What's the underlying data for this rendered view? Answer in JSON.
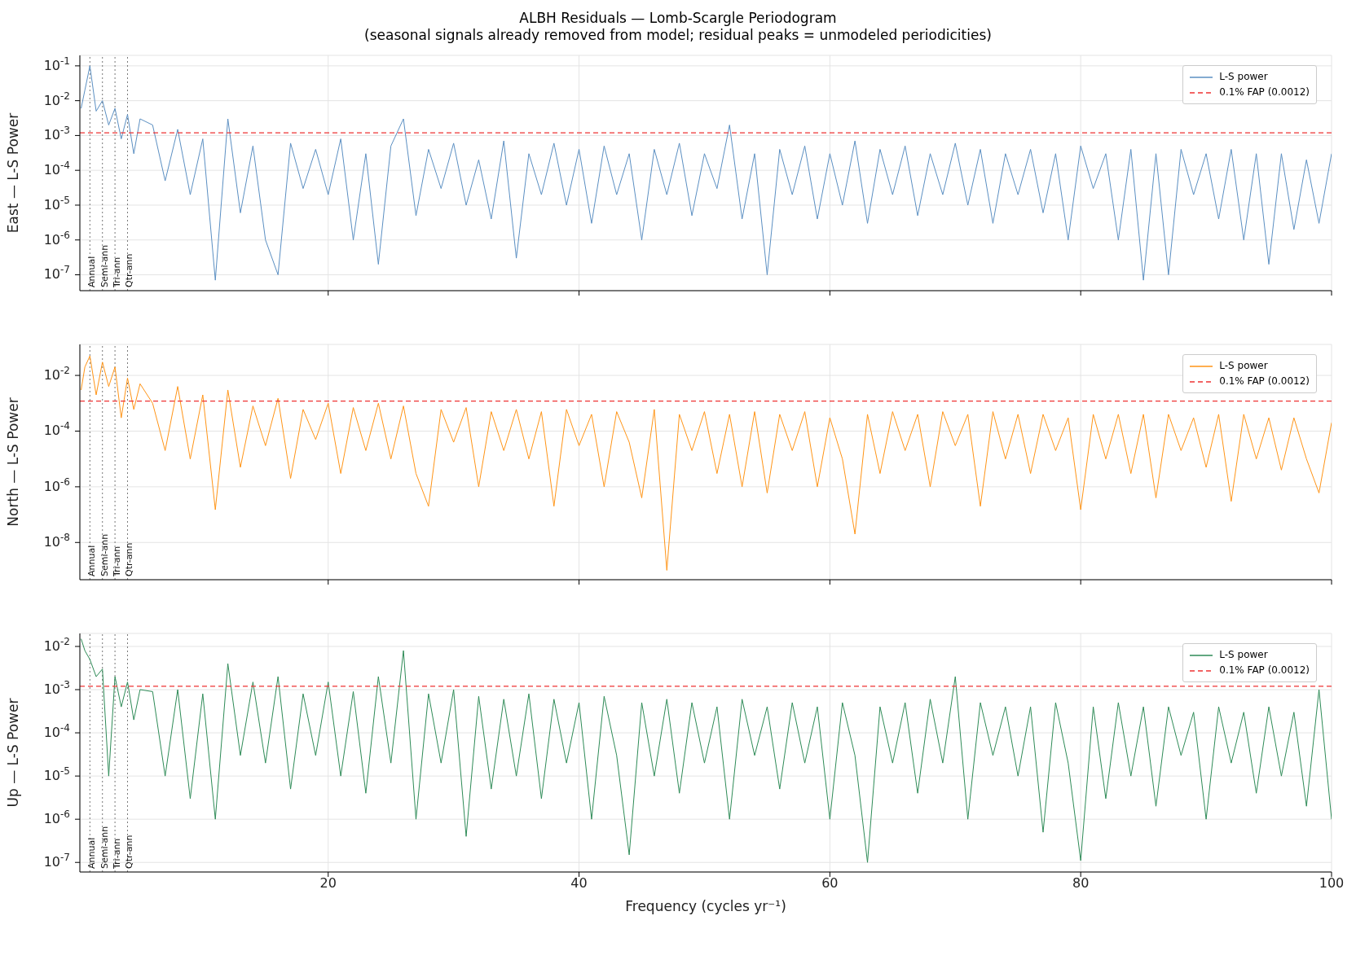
{
  "chart_data": [
    {
      "type": "line",
      "title": "ALBH Residuals — Lomb-Scargle Periodogram",
      "subtitle": "(seasonal signals already removed from model; residual peaks = unmodeled periodicities)",
      "ylabel": "East — L-S Power",
      "log": "y",
      "grid": true,
      "legend": "top right",
      "tick_labels": "y",
      "line_style": "solid",
      "xlim": [
        0.2,
        100
      ],
      "xticks": [
        20,
        40,
        60,
        80,
        100
      ],
      "ylim": [
        3.5e-08,
        0.2
      ],
      "yticks": [
        {
          "value": 1e-07,
          "label": "10$^{-7}$"
        },
        {
          "value": 1e-06,
          "label": "10$^{-6}$"
        },
        {
          "value": 1e-05,
          "label": "10$^{-5}$"
        },
        {
          "value": 0.0001,
          "label": "10$^{-4}$"
        },
        {
          "value": 0.001,
          "label": "10$^{-3}$"
        },
        {
          "value": 0.01,
          "label": "10$^{-2}$"
        },
        {
          "value": 0.1,
          "label": "10$^{-1}$"
        }
      ],
      "ref_lines": [
        {
          "axis": "y",
          "value": 0.0012,
          "label": "0.1% FAP (0.0012)",
          "color": "#ee3333",
          "line_style": "dashed"
        },
        {
          "axis": "x",
          "value": 1,
          "label": "Annual",
          "color": "#555555",
          "line_style": "dotted"
        },
        {
          "axis": "x",
          "value": 2,
          "label": "Semi-ann",
          "color": "#555555",
          "line_style": "dotted"
        },
        {
          "axis": "x",
          "value": 3,
          "label": "Tri-ann",
          "color": "#555555",
          "line_style": "dotted"
        },
        {
          "axis": "x",
          "value": 4,
          "label": "Qtr-ann",
          "color": "#555555",
          "line_style": "dotted"
        }
      ],
      "x": [
        0.3,
        0.6,
        1,
        1.5,
        2,
        2.5,
        3,
        3.5,
        4,
        4.5,
        5,
        6,
        7,
        8,
        9,
        10,
        11,
        12,
        13,
        14,
        15,
        16,
        17,
        18,
        19,
        20,
        21,
        22,
        23,
        24,
        25,
        26,
        27,
        28,
        29,
        30,
        31,
        32,
        33,
        34,
        35,
        36,
        37,
        38,
        39,
        40,
        41,
        42,
        43,
        44,
        45,
        46,
        47,
        48,
        49,
        50,
        51,
        52,
        53,
        54,
        55,
        56,
        57,
        58,
        59,
        60,
        61,
        62,
        63,
        64,
        65,
        66,
        67,
        68,
        69,
        70,
        71,
        72,
        73,
        74,
        75,
        76,
        77,
        78,
        79,
        80,
        81,
        82,
        83,
        84,
        85,
        86,
        87,
        88,
        89,
        90,
        91,
        92,
        93,
        94,
        95,
        96,
        97,
        98,
        99,
        100
      ],
      "series": [
        {
          "name": "L-S power",
          "color": "#5b8fc2",
          "values": [
            0.006,
            0.02,
            0.1,
            0.005,
            0.01,
            0.002,
            0.006,
            0.0008,
            0.004,
            0.0003,
            0.003,
            0.002,
            5e-05,
            0.0015,
            2e-05,
            0.0008,
            7e-08,
            0.003,
            6e-06,
            0.0005,
            1e-06,
            1e-07,
            0.0006,
            3e-05,
            0.0004,
            2e-05,
            0.0008,
            1e-06,
            0.0003,
            2e-07,
            0.0005,
            0.003,
            5e-06,
            0.0004,
            3e-05,
            0.0006,
            1e-05,
            0.0002,
            4e-06,
            0.0007,
            3e-07,
            0.0003,
            2e-05,
            0.0006,
            1e-05,
            0.0004,
            3e-06,
            0.0005,
            2e-05,
            0.0003,
            1e-06,
            0.0004,
            2e-05,
            0.0006,
            5e-06,
            0.0003,
            3e-05,
            0.002,
            4e-06,
            0.0003,
            1e-07,
            0.0004,
            2e-05,
            0.0005,
            4e-06,
            0.0003,
            1e-05,
            0.0007,
            3e-06,
            0.0004,
            2e-05,
            0.0005,
            5e-06,
            0.0003,
            2e-05,
            0.0006,
            1e-05,
            0.0004,
            3e-06,
            0.0003,
            2e-05,
            0.0004,
            6e-06,
            0.0003,
            1e-06,
            0.0005,
            3e-05,
            0.0003,
            1e-06,
            0.0004,
            7e-08,
            0.0003,
            1e-07,
            0.0004,
            2e-05,
            0.0003,
            4e-06,
            0.0004,
            1e-06,
            0.0003,
            2e-07,
            0.0003,
            2e-06,
            0.0002,
            3e-06,
            0.0003
          ]
        }
      ]
    },
    {
      "type": "line",
      "ylabel": "North — L-S Power",
      "log": "y",
      "grid": true,
      "legend": "top right",
      "tick_labels": "y",
      "line_style": "solid",
      "xlim": [
        0.2,
        100
      ],
      "xticks": [
        20,
        40,
        60,
        80,
        100
      ],
      "ylim": [
        4.6e-10,
        0.13
      ],
      "yticks": [
        {
          "value": 1e-08,
          "label": "10$^{-8}$"
        },
        {
          "value": 1e-06,
          "label": "10$^{-6}$"
        },
        {
          "value": 0.0001,
          "label": "10$^{-4}$"
        },
        {
          "value": 0.01,
          "label": "10$^{-2}$"
        }
      ],
      "ref_lines": [
        {
          "axis": "y",
          "value": 0.0012,
          "label": "0.1% FAP (0.0012)",
          "color": "#ee3333",
          "line_style": "dashed"
        },
        {
          "axis": "x",
          "value": 1,
          "label": "Annual",
          "color": "#555555",
          "line_style": "dotted"
        },
        {
          "axis": "x",
          "value": 2,
          "label": "Semi-ann",
          "color": "#555555",
          "line_style": "dotted"
        },
        {
          "axis": "x",
          "value": 3,
          "label": "Tri-ann",
          "color": "#555555",
          "line_style": "dotted"
        },
        {
          "axis": "x",
          "value": 4,
          "label": "Qtr-ann",
          "color": "#555555",
          "line_style": "dotted"
        }
      ],
      "x": [
        0.3,
        0.6,
        1,
        1.5,
        2,
        2.5,
        3,
        3.5,
        4,
        4.5,
        5,
        6,
        7,
        8,
        9,
        10,
        11,
        12,
        13,
        14,
        15,
        16,
        17,
        18,
        19,
        20,
        21,
        22,
        23,
        24,
        25,
        26,
        27,
        28,
        29,
        30,
        31,
        32,
        33,
        34,
        35,
        36,
        37,
        38,
        39,
        40,
        41,
        42,
        43,
        44,
        45,
        46,
        47,
        48,
        49,
        50,
        51,
        52,
        53,
        54,
        55,
        56,
        57,
        58,
        59,
        60,
        61,
        62,
        63,
        64,
        65,
        66,
        67,
        68,
        69,
        70,
        71,
        72,
        73,
        74,
        75,
        76,
        77,
        78,
        79,
        80,
        81,
        82,
        83,
        84,
        85,
        86,
        87,
        88,
        89,
        90,
        91,
        92,
        93,
        94,
        95,
        96,
        97,
        98,
        99,
        100
      ],
      "series": [
        {
          "name": "L-S power",
          "color": "#ff9416",
          "values": [
            0.003,
            0.02,
            0.05,
            0.002,
            0.03,
            0.004,
            0.02,
            0.0003,
            0.008,
            0.0006,
            0.005,
            0.001,
            2e-05,
            0.004,
            1e-05,
            0.002,
            1.5e-07,
            0.003,
            5e-06,
            0.0008,
            3e-05,
            0.0015,
            2e-06,
            0.0006,
            5e-05,
            0.001,
            3e-06,
            0.0007,
            2e-05,
            0.001,
            1e-05,
            0.0008,
            3e-06,
            2e-07,
            0.0006,
            4e-05,
            0.0007,
            1e-06,
            0.0005,
            2e-05,
            0.0006,
            1e-05,
            0.0005,
            2e-07,
            0.0006,
            3e-05,
            0.0004,
            1e-06,
            0.0005,
            4e-05,
            4e-07,
            0.0006,
            1e-09,
            0.0004,
            2e-05,
            0.0005,
            3e-06,
            0.0004,
            1e-06,
            0.0005,
            6e-07,
            0.0004,
            2e-05,
            0.0005,
            1e-06,
            0.0003,
            1e-05,
            2e-08,
            0.0004,
            3e-06,
            0.0005,
            2e-05,
            0.0004,
            1e-06,
            0.0005,
            3e-05,
            0.0004,
            2e-07,
            0.0005,
            1e-05,
            0.0004,
            3e-06,
            0.0004,
            2e-05,
            0.0003,
            1.5e-07,
            0.0004,
            1e-05,
            0.0004,
            3e-06,
            0.0004,
            4e-07,
            0.0004,
            2e-05,
            0.0003,
            5e-06,
            0.0004,
            3e-07,
            0.0004,
            1e-05,
            0.0003,
            4e-06,
            0.0003,
            1e-05,
            6e-07,
            0.0002
          ]
        }
      ]
    },
    {
      "type": "line",
      "ylabel": "Up — L-S Power",
      "xlabel": "Frequency (cycles yr⁻¹)",
      "log": "y",
      "grid": true,
      "legend": "top right",
      "line_style": "solid",
      "xlim": [
        0.2,
        100
      ],
      "xticks": [
        20,
        40,
        60,
        80,
        100
      ],
      "ylim": [
        6e-08,
        0.02
      ],
      "yticks": [
        {
          "value": 1e-07,
          "label": "10$^{-7}$"
        },
        {
          "value": 1e-06,
          "label": "10$^{-6}$"
        },
        {
          "value": 1e-05,
          "label": "10$^{-5}$"
        },
        {
          "value": 0.0001,
          "label": "10$^{-4}$"
        },
        {
          "value": 0.001,
          "label": "10$^{-3}$"
        },
        {
          "value": 0.01,
          "label": "10$^{-2}$"
        }
      ],
      "ref_lines": [
        {
          "axis": "y",
          "value": 0.0012,
          "label": "0.1% FAP (0.0012)",
          "color": "#ee3333",
          "line_style": "dashed"
        },
        {
          "axis": "x",
          "value": 1,
          "label": "Annual",
          "color": "#555555",
          "line_style": "dotted"
        },
        {
          "axis": "x",
          "value": 2,
          "label": "Semi-ann",
          "color": "#555555",
          "line_style": "dotted"
        },
        {
          "axis": "x",
          "value": 3,
          "label": "Tri-ann",
          "color": "#555555",
          "line_style": "dotted"
        },
        {
          "axis": "x",
          "value": 4,
          "label": "Qtr-ann",
          "color": "#555555",
          "line_style": "dotted"
        }
      ],
      "x": [
        0.3,
        0.6,
        1,
        1.5,
        2,
        2.5,
        3,
        3.5,
        4,
        4.5,
        5,
        6,
        7,
        8,
        9,
        10,
        11,
        12,
        13,
        14,
        15,
        16,
        17,
        18,
        19,
        20,
        21,
        22,
        23,
        24,
        25,
        26,
        27,
        28,
        29,
        30,
        31,
        32,
        33,
        34,
        35,
        36,
        37,
        38,
        39,
        40,
        41,
        42,
        43,
        44,
        45,
        46,
        47,
        48,
        49,
        50,
        51,
        52,
        53,
        54,
        55,
        56,
        57,
        58,
        59,
        60,
        61,
        62,
        63,
        64,
        65,
        66,
        67,
        68,
        69,
        70,
        71,
        72,
        73,
        74,
        75,
        76,
        77,
        78,
        79,
        80,
        81,
        82,
        83,
        84,
        85,
        86,
        87,
        88,
        89,
        90,
        91,
        92,
        93,
        94,
        95,
        96,
        97,
        98,
        99,
        100
      ],
      "series": [
        {
          "name": "L-S power",
          "color": "#2e8b57",
          "values": [
            0.015,
            0.008,
            0.005,
            0.002,
            0.003,
            1e-05,
            0.002,
            0.0004,
            0.0015,
            0.0002,
            0.001,
            0.0009,
            1e-05,
            0.001,
            3e-06,
            0.0008,
            1e-06,
            0.004,
            3e-05,
            0.0015,
            2e-05,
            0.002,
            5e-06,
            0.0008,
            3e-05,
            0.0015,
            1e-05,
            0.0009,
            4e-06,
            0.002,
            2e-05,
            0.008,
            1e-06,
            0.0008,
            2e-05,
            0.001,
            4e-07,
            0.0007,
            5e-06,
            0.0006,
            1e-05,
            0.0008,
            3e-06,
            0.0006,
            2e-05,
            0.0005,
            1e-06,
            0.0007,
            3e-05,
            1.5e-07,
            0.0005,
            1e-05,
            0.0006,
            4e-06,
            0.0005,
            2e-05,
            0.0004,
            1e-06,
            0.0006,
            3e-05,
            0.0004,
            5e-06,
            0.0005,
            2e-05,
            0.0004,
            1e-06,
            0.0005,
            3e-05,
            1e-07,
            0.0004,
            2e-05,
            0.0005,
            4e-06,
            0.0006,
            2e-05,
            0.002,
            1e-06,
            0.0005,
            3e-05,
            0.0004,
            1e-05,
            0.0004,
            5e-07,
            0.0005,
            2e-05,
            1.1e-07,
            0.0004,
            3e-06,
            0.0005,
            1e-05,
            0.0004,
            2e-06,
            0.0004,
            3e-05,
            0.0003,
            1e-06,
            0.0004,
            2e-05,
            0.0003,
            4e-06,
            0.0004,
            1e-05,
            0.0003,
            2e-06,
            0.001,
            1e-06
          ]
        }
      ]
    }
  ]
}
